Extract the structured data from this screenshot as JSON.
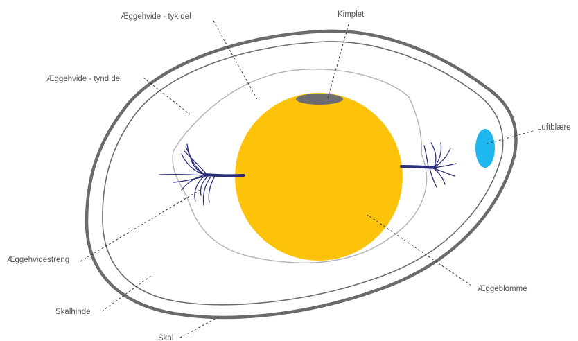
{
  "diagram": {
    "labels": {
      "aeggehvide_tyk": "Æggehvide - tyk del",
      "kimplet": "Kimplet",
      "aeggehvide_tynd": "Æggehvide - tynd del",
      "luftblaere": "Luftblære",
      "aeggehvidestreng": "Æggehvidestreng",
      "aeggeblomme": "Æggeblomme",
      "skalhinde": "Skalhinde",
      "skal": "Skal"
    },
    "colors": {
      "shell": "#6b6b6b",
      "membrane": "#6b6b6b",
      "thick_albumen": "#b5b5b5",
      "yolk": "#fcc30a",
      "germinal_disc": "#6d6d6d",
      "air_cell": "#1eb6ee",
      "chalazae": "#2b2f7a"
    }
  }
}
